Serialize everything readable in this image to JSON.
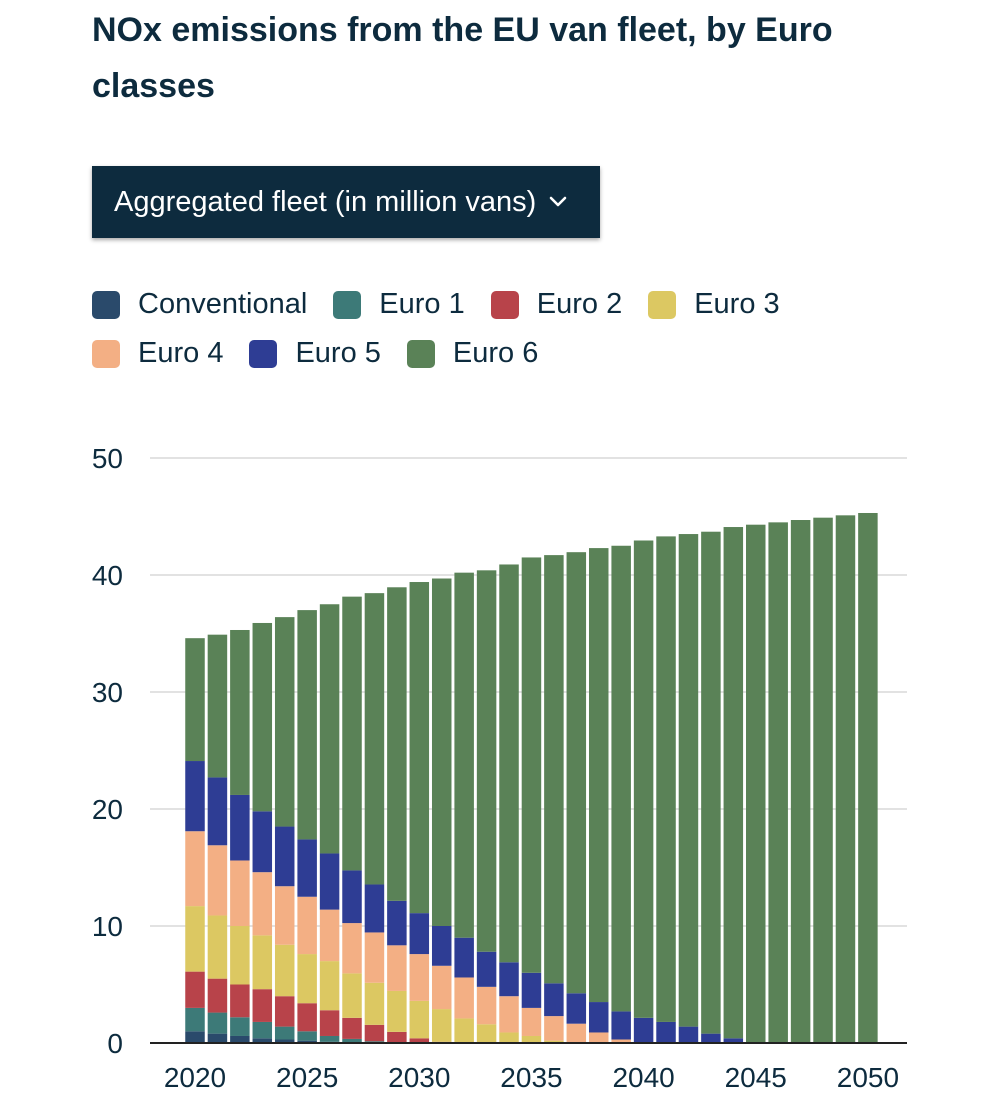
{
  "title": "NOx emissions from the EU van fleet, by Euro classes",
  "dropdown": {
    "selected": "Aggregated fleet (in million vans)",
    "icon": "chevron-down-icon"
  },
  "chart_data": {
    "type": "bar",
    "stacked": true,
    "legend_position": "top-left",
    "grid": true,
    "ylim": [
      0,
      50
    ],
    "yticks": [
      0,
      10,
      20,
      30,
      40,
      50
    ],
    "xticks": [
      "2020",
      "2025",
      "2030",
      "2035",
      "2040",
      "2045",
      "2050"
    ],
    "categories": [
      "2020",
      "2021",
      "2022",
      "2023",
      "2024",
      "2025",
      "2026",
      "2027",
      "2028",
      "2029",
      "2030",
      "2031",
      "2032",
      "2033",
      "2034",
      "2035",
      "2036",
      "2037",
      "2038",
      "2039",
      "2040",
      "2041",
      "2042",
      "2043",
      "2044",
      "2045",
      "2046",
      "2047",
      "2048",
      "2049",
      "2050"
    ],
    "series": [
      {
        "name": "Conventional",
        "color": "#2a4a6b",
        "values": [
          1.0,
          0.8,
          0.6,
          0.4,
          0.3,
          0.2,
          0.1,
          0.05,
          0,
          0,
          0,
          0,
          0,
          0,
          0,
          0,
          0,
          0,
          0,
          0,
          0,
          0,
          0,
          0,
          0,
          0,
          0,
          0,
          0,
          0,
          0
        ]
      },
      {
        "name": "Euro 1",
        "color": "#3d7a78",
        "values": [
          2.0,
          1.8,
          1.6,
          1.4,
          1.1,
          0.8,
          0.5,
          0.3,
          0.15,
          0.05,
          0,
          0,
          0,
          0,
          0,
          0,
          0,
          0,
          0,
          0,
          0,
          0,
          0,
          0,
          0,
          0,
          0,
          0,
          0,
          0,
          0
        ]
      },
      {
        "name": "Euro 2",
        "color": "#b8434a",
        "values": [
          3.1,
          2.9,
          2.8,
          2.8,
          2.6,
          2.4,
          2.2,
          1.8,
          1.4,
          0.9,
          0.4,
          0.1,
          0,
          0,
          0,
          0,
          0,
          0,
          0,
          0,
          0,
          0,
          0,
          0,
          0,
          0,
          0,
          0,
          0,
          0,
          0
        ]
      },
      {
        "name": "Euro 3",
        "color": "#dcc862",
        "values": [
          5.6,
          5.4,
          5.0,
          4.6,
          4.4,
          4.2,
          4.2,
          3.8,
          3.6,
          3.5,
          3.2,
          2.8,
          2.1,
          1.6,
          0.9,
          0.6,
          0.2,
          0.05,
          0,
          0,
          0,
          0,
          0,
          0,
          0,
          0,
          0,
          0,
          0,
          0,
          0
        ]
      },
      {
        "name": "Euro 4",
        "color": "#f3af84",
        "values": [
          6.4,
          6.0,
          5.6,
          5.4,
          5.0,
          4.9,
          4.4,
          4.3,
          4.3,
          3.9,
          4.0,
          3.7,
          3.5,
          3.2,
          3.1,
          2.4,
          2.1,
          1.6,
          0.9,
          0.3,
          0.05,
          0,
          0,
          0,
          0,
          0,
          0,
          0,
          0,
          0,
          0
        ]
      },
      {
        "name": "Euro 5",
        "color": "#2e3d94",
        "values": [
          6.0,
          5.8,
          5.6,
          5.2,
          5.1,
          4.9,
          4.8,
          4.5,
          4.1,
          3.8,
          3.5,
          3.4,
          3.4,
          3.0,
          2.9,
          3.0,
          2.8,
          2.6,
          2.6,
          2.4,
          2.1,
          1.8,
          1.4,
          0.8,
          0.4,
          0,
          0,
          0,
          0,
          0,
          0
        ]
      },
      {
        "name": "Euro 6",
        "color": "#5a8257",
        "values": [
          10.5,
          12.2,
          14.1,
          16.1,
          17.9,
          19.6,
          21.3,
          23.4,
          24.9,
          26.8,
          28.3,
          29.7,
          31.2,
          32.6,
          34.0,
          35.5,
          36.6,
          37.7,
          38.8,
          39.8,
          40.8,
          41.5,
          42.1,
          42.9,
          43.7,
          44.3,
          44.5,
          44.7,
          44.9,
          45.1,
          45.3
        ]
      }
    ]
  }
}
